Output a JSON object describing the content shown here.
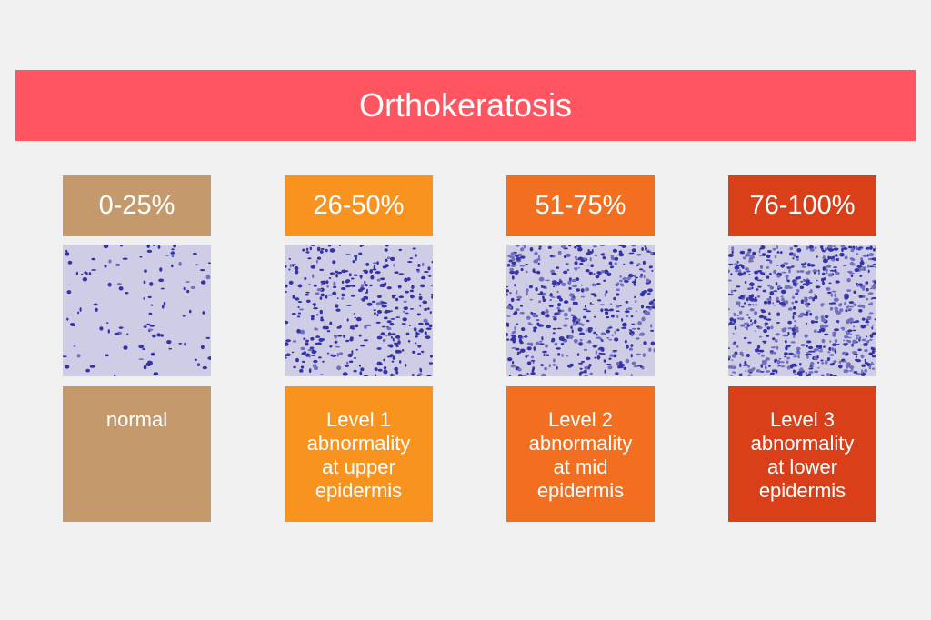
{
  "header": {
    "title": "Orthokeratosis"
  },
  "columns": [
    {
      "range": "0-25%",
      "description": [
        "normal"
      ]
    },
    {
      "range": "26-50%",
      "description": [
        "Level 1",
        "abnormality",
        "at upper",
        "epidermis"
      ]
    },
    {
      "range": "51-75%",
      "description": [
        "Level 2",
        "abnormality",
        "at mid",
        "epidermis"
      ]
    },
    {
      "range": "76-100%",
      "description": [
        "Level 3",
        "abnormality",
        "at lower",
        "epidermis"
      ]
    }
  ]
}
